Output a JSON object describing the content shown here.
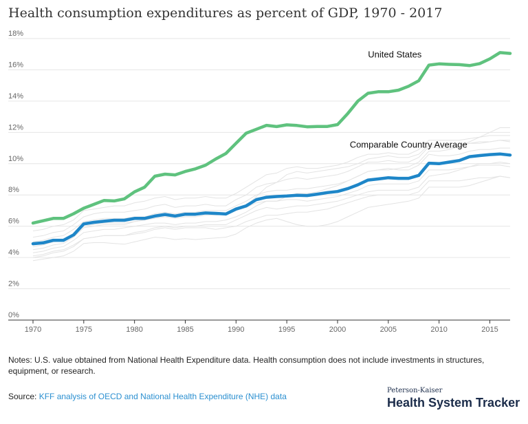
{
  "colors": {
    "us": "#5fc27e",
    "avg": "#1e86c8",
    "countries": "#e3e3e3",
    "grid": "#e6e6e6",
    "axis": "#333333"
  },
  "notes": {
    "label": "Notes:",
    "text": "U.S. value obtained from National Health Expenditure data. Health consumption does not include investments in structures, equipment, or research."
  },
  "source": {
    "label": "Source:",
    "link_text": "KFF analysis of OECD and National Health Expenditure (NHE) data"
  },
  "logo": {
    "top": "Peterson-Kaiser",
    "main": "Health System Tracker"
  },
  "chart_data": {
    "type": "line",
    "title": "Health consumption expenditures as percent of GDP, 1970 - 2017",
    "xlabel": "",
    "ylabel": "",
    "xlim": [
      1970,
      2017
    ],
    "ylim": [
      0,
      18
    ],
    "x_ticks": [
      1970,
      1975,
      1980,
      1985,
      1990,
      1995,
      2000,
      2005,
      2010,
      2015
    ],
    "y_ticks": [
      0,
      2,
      4,
      6,
      8,
      10,
      12,
      14,
      16,
      18
    ],
    "y_tick_suffix": "%",
    "grid": "horizontal",
    "x": [
      1970,
      1971,
      1972,
      1973,
      1974,
      1975,
      1976,
      1977,
      1978,
      1979,
      1980,
      1981,
      1982,
      1983,
      1984,
      1985,
      1986,
      1987,
      1988,
      1989,
      1990,
      1991,
      1992,
      1993,
      1994,
      1995,
      1996,
      1997,
      1998,
      1999,
      2000,
      2001,
      2002,
      2003,
      2004,
      2005,
      2006,
      2007,
      2008,
      2009,
      2010,
      2011,
      2012,
      2013,
      2014,
      2015,
      2016,
      2017
    ],
    "series": [
      {
        "name": "United States",
        "values": [
          6.2,
          6.35,
          6.5,
          6.5,
          6.8,
          7.15,
          7.4,
          7.65,
          7.62,
          7.75,
          8.2,
          8.5,
          9.2,
          9.33,
          9.28,
          9.5,
          9.67,
          9.9,
          10.3,
          10.65,
          11.3,
          11.95,
          12.2,
          12.45,
          12.37,
          12.48,
          12.44,
          12.36,
          12.38,
          12.38,
          12.5,
          13.2,
          14.0,
          14.5,
          14.6,
          14.6,
          14.7,
          14.95,
          15.3,
          16.3,
          16.38,
          16.35,
          16.33,
          16.27,
          16.4,
          16.7,
          17.1,
          17.05
        ]
      },
      {
        "name": "Comparable Country Average",
        "values": [
          4.88,
          4.94,
          5.1,
          5.1,
          5.45,
          6.15,
          6.25,
          6.32,
          6.38,
          6.38,
          6.5,
          6.5,
          6.65,
          6.75,
          6.65,
          6.77,
          6.77,
          6.85,
          6.82,
          6.78,
          7.1,
          7.3,
          7.7,
          7.85,
          7.9,
          7.93,
          7.98,
          7.96,
          8.05,
          8.15,
          8.22,
          8.4,
          8.65,
          8.95,
          9.02,
          9.1,
          9.06,
          9.06,
          9.25,
          10.03,
          10.0,
          10.1,
          10.2,
          10.45,
          10.52,
          10.58,
          10.62,
          10.55
        ]
      }
    ],
    "background_series": [
      {
        "values": [
          3.8,
          3.9,
          4.0,
          4.1,
          4.4,
          4.9,
          4.95,
          4.95,
          4.9,
          4.85,
          5.0,
          5.15,
          5.3,
          5.25,
          5.15,
          5.2,
          5.15,
          5.2,
          5.25,
          5.3,
          5.5,
          5.9,
          6.2,
          6.4,
          6.5,
          6.3,
          6.1,
          6.0,
          6.0,
          6.1,
          6.3,
          6.6,
          6.9,
          7.2,
          7.3,
          7.4,
          7.5,
          7.6,
          7.8,
          8.5,
          8.5,
          8.5,
          8.5,
          8.6,
          8.8,
          9.0,
          9.2,
          9.1
        ]
      },
      {
        "values": [
          4.1,
          4.2,
          4.4,
          4.5,
          4.8,
          5.2,
          5.3,
          5.4,
          5.4,
          5.4,
          5.5,
          5.6,
          5.8,
          5.9,
          5.8,
          5.9,
          5.9,
          5.9,
          5.8,
          5.9,
          6.0,
          6.3,
          6.5,
          6.7,
          6.7,
          6.8,
          6.9,
          6.9,
          7.0,
          7.1,
          7.3,
          7.5,
          7.7,
          7.9,
          8.0,
          8.0,
          8.0,
          8.0,
          8.2,
          8.9,
          8.9,
          8.9,
          8.9,
          9.0,
          9.1,
          9.1,
          9.2,
          9.1
        ]
      },
      {
        "values": [
          4.5,
          4.6,
          4.8,
          4.9,
          5.3,
          5.9,
          6.0,
          6.1,
          6.1,
          6.1,
          6.3,
          6.4,
          6.5,
          6.6,
          6.5,
          6.6,
          6.6,
          6.7,
          6.7,
          6.8,
          7.0,
          7.2,
          7.5,
          7.6,
          7.6,
          7.7,
          7.7,
          7.6,
          7.7,
          7.8,
          7.9,
          8.1,
          8.3,
          8.6,
          8.7,
          8.7,
          8.7,
          8.7,
          8.9,
          9.6,
          9.6,
          9.6,
          9.7,
          9.8,
          9.9,
          9.9,
          9.9,
          9.8
        ]
      },
      {
        "values": [
          5.0,
          5.1,
          5.3,
          5.4,
          5.8,
          6.3,
          6.4,
          6.5,
          6.5,
          6.5,
          6.6,
          6.6,
          6.8,
          6.9,
          6.8,
          6.9,
          6.9,
          7.0,
          7.0,
          7.0,
          7.3,
          7.6,
          8.0,
          8.2,
          8.3,
          8.3,
          8.4,
          8.4,
          8.5,
          8.6,
          8.7,
          8.9,
          9.2,
          9.5,
          9.6,
          9.7,
          9.6,
          9.6,
          9.9,
          10.6,
          10.5,
          10.5,
          10.6,
          10.8,
          10.9,
          10.9,
          11.0,
          11.0
        ]
      },
      {
        "values": [
          5.3,
          5.4,
          5.6,
          5.7,
          6.1,
          6.6,
          6.8,
          6.9,
          6.9,
          6.9,
          7.0,
          7.1,
          7.3,
          7.4,
          7.2,
          7.3,
          7.3,
          7.4,
          7.3,
          7.3,
          7.7,
          8.0,
          8.5,
          8.7,
          8.8,
          9.0,
          9.1,
          9.0,
          9.1,
          9.2,
          9.3,
          9.5,
          9.8,
          10.1,
          10.1,
          10.2,
          10.1,
          10.1,
          10.4,
          11.1,
          11.0,
          11.0,
          11.1,
          11.3,
          11.4,
          11.4,
          11.5,
          11.4
        ]
      },
      {
        "values": [
          5.7,
          5.8,
          6.0,
          6.1,
          6.4,
          7.0,
          7.1,
          7.2,
          7.3,
          7.3,
          7.5,
          7.6,
          7.8,
          7.9,
          7.7,
          7.8,
          7.8,
          7.9,
          7.8,
          7.8,
          8.1,
          8.5,
          8.9,
          9.3,
          9.4,
          9.7,
          9.8,
          9.7,
          9.7,
          9.8,
          9.9,
          10.1,
          10.4,
          10.6,
          10.6,
          10.7,
          10.6,
          10.6,
          10.9,
          11.5,
          11.5,
          11.5,
          11.5,
          11.6,
          11.7,
          11.8,
          11.8,
          11.8
        ]
      },
      {
        "values": [
          4.3,
          4.4,
          4.6,
          4.7,
          5.1,
          5.6,
          5.7,
          5.8,
          5.8,
          5.9,
          6.0,
          6.1,
          6.2,
          6.2,
          6.1,
          6.2,
          6.2,
          6.3,
          6.3,
          6.4,
          6.6,
          6.9,
          7.3,
          7.6,
          7.6,
          7.9,
          8.1,
          8.1,
          8.2,
          8.4,
          8.6,
          8.9,
          9.2,
          9.5,
          9.6,
          9.6,
          9.7,
          9.8,
          10.1,
          10.8,
          10.8,
          10.9,
          11.1,
          11.4,
          11.7,
          12.0,
          12.3,
          12.3
        ]
      },
      {
        "values": [
          4.7,
          4.8,
          5.0,
          5.1,
          5.5,
          6.0,
          6.1,
          6.2,
          6.2,
          6.2,
          6.3,
          6.4,
          6.6,
          6.7,
          6.6,
          6.7,
          6.7,
          6.8,
          6.8,
          6.7,
          7.0,
          7.3,
          7.9,
          8.5,
          8.8,
          9.3,
          9.5,
          9.4,
          9.5,
          9.6,
          9.7,
          9.8,
          10.0,
          10.3,
          10.4,
          10.5,
          10.4,
          10.4,
          10.6,
          11.2,
          11.2,
          11.1,
          11.2,
          11.3,
          11.3,
          11.4,
          11.5,
          11.5
        ]
      },
      {
        "values": [
          4.0,
          4.1,
          4.3,
          4.4,
          4.7,
          5.2,
          5.3,
          5.4,
          5.4,
          5.4,
          5.6,
          5.7,
          5.9,
          6.0,
          5.9,
          6.0,
          6.0,
          6.1,
          6.1,
          6.1,
          6.4,
          6.7,
          7.0,
          7.2,
          7.1,
          7.2,
          7.3,
          7.3,
          7.4,
          7.5,
          7.6,
          7.8,
          8.0,
          8.2,
          8.3,
          8.3,
          8.3,
          8.3,
          8.5,
          9.2,
          9.3,
          9.4,
          9.6,
          9.8,
          10.0,
          10.0,
          10.1,
          10.0
        ]
      }
    ],
    "annotations": [
      {
        "text": "United States",
        "series": 0
      },
      {
        "text": "Comparable Country Average",
        "series": 1
      }
    ]
  }
}
